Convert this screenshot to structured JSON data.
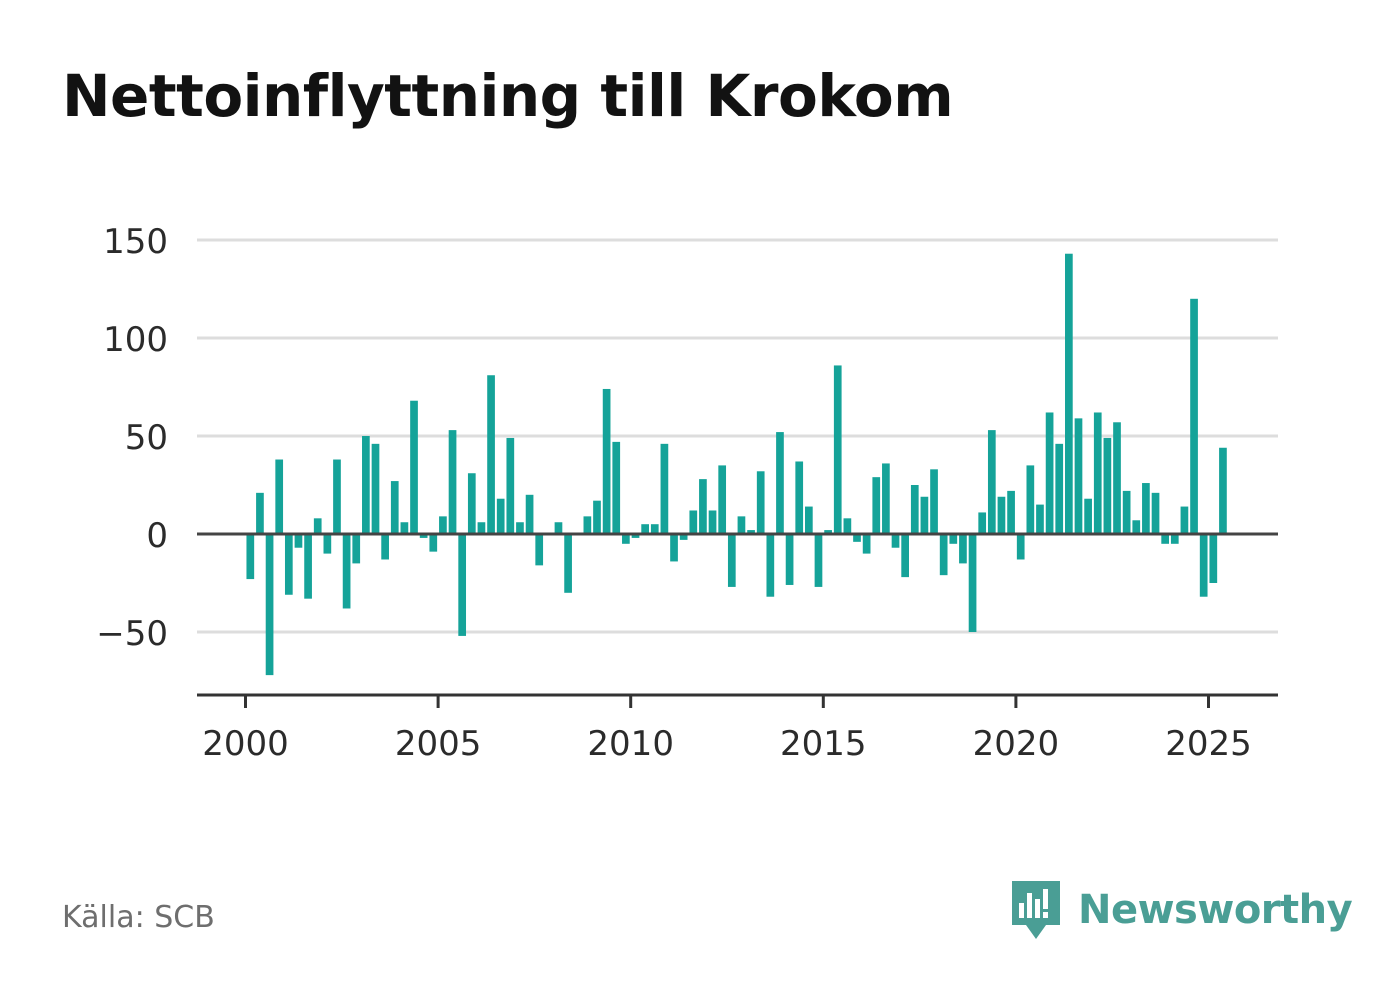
{
  "title": "Nettoinflyttning till Krokom",
  "source": "Källa: SCB",
  "brand": {
    "name": "Newsworthy",
    "icon": "newsworthy-logo-icon",
    "color": "#4a9e95"
  },
  "colors": {
    "bar": "#15a399",
    "grid": "#dddddd",
    "axis": "#333333",
    "text": "#2b2b2b"
  },
  "chart_data": {
    "type": "bar",
    "title": "Nettoinflyttning till Krokom",
    "xlabel": "",
    "ylabel": "",
    "ylim": [
      -83,
      150
    ],
    "xlim": [
      1997.6,
      2027.6
    ],
    "grid": true,
    "legend": "none",
    "yticks": [
      150,
      100,
      50,
      0,
      -50
    ],
    "ytick_labels": [
      "150",
      "100",
      "50",
      "0",
      "−50"
    ],
    "xticks": [
      2000,
      2005,
      2010,
      2015,
      2020,
      2025
    ],
    "xtick_labels": [
      "2000",
      "2005",
      "2010",
      "2015",
      "2020",
      "2025"
    ],
    "bar_width_years": 0.2,
    "x": [
      2000.125,
      2000.375,
      2000.625,
      2000.875,
      2001.125,
      2001.375,
      2001.625,
      2001.875,
      2002.125,
      2002.375,
      2002.625,
      2002.875,
      2003.125,
      2003.375,
      2003.625,
      2003.875,
      2004.125,
      2004.375,
      2004.625,
      2004.875,
      2005.125,
      2005.375,
      2005.625,
      2005.875,
      2006.125,
      2006.375,
      2006.625,
      2006.875,
      2007.125,
      2007.375,
      2007.625,
      2007.875,
      2008.125,
      2008.375,
      2008.625,
      2008.875,
      2009.125,
      2009.375,
      2009.625,
      2009.875,
      2010.125,
      2010.375,
      2010.625,
      2010.875,
      2011.125,
      2011.375,
      2011.625,
      2011.875,
      2012.125,
      2012.375,
      2012.625,
      2012.875,
      2013.125,
      2013.375,
      2013.625,
      2013.875,
      2014.125,
      2014.375,
      2014.625,
      2014.875,
      2015.125,
      2015.375,
      2015.625,
      2015.875,
      2016.125,
      2016.375,
      2016.625,
      2016.875,
      2017.125,
      2017.375,
      2017.625,
      2017.875,
      2018.125,
      2018.375,
      2018.625,
      2018.875,
      2019.125,
      2019.375,
      2019.625,
      2019.875,
      2020.125,
      2020.375,
      2020.625,
      2020.875,
      2021.125,
      2021.375,
      2021.625,
      2021.875,
      2022.125,
      2022.375,
      2022.625,
      2022.875,
      2023.125,
      2023.375,
      2023.625,
      2023.875,
      2024.125,
      2024.375,
      2024.625,
      2024.875,
      2025.125,
      2025.375
    ],
    "values": [
      -23,
      21,
      -72,
      38,
      -31,
      -7,
      -33,
      8,
      -10,
      38,
      -38,
      -15,
      50,
      46,
      -13,
      27,
      6,
      68,
      -2,
      -9,
      9,
      53,
      -52,
      31,
      6,
      81,
      18,
      49,
      6,
      20,
      -16,
      0,
      6,
      -30,
      0,
      9,
      17,
      74,
      47,
      -5,
      -2,
      5,
      5,
      46,
      -14,
      -3,
      12,
      28,
      12,
      35,
      -27,
      9,
      2,
      32,
      -32,
      52,
      -26,
      37,
      14,
      -27,
      2,
      86,
      8,
      -4,
      -10,
      29,
      36,
      -7,
      -22,
      25,
      19,
      33,
      -21,
      -5,
      -15,
      -50,
      11,
      53,
      19,
      22,
      -13,
      35,
      15,
      62,
      46,
      143,
      59,
      18,
      62,
      49,
      57,
      22,
      7,
      26,
      21,
      -5,
      -5,
      14,
      120,
      -32,
      -25,
      44
    ]
  }
}
